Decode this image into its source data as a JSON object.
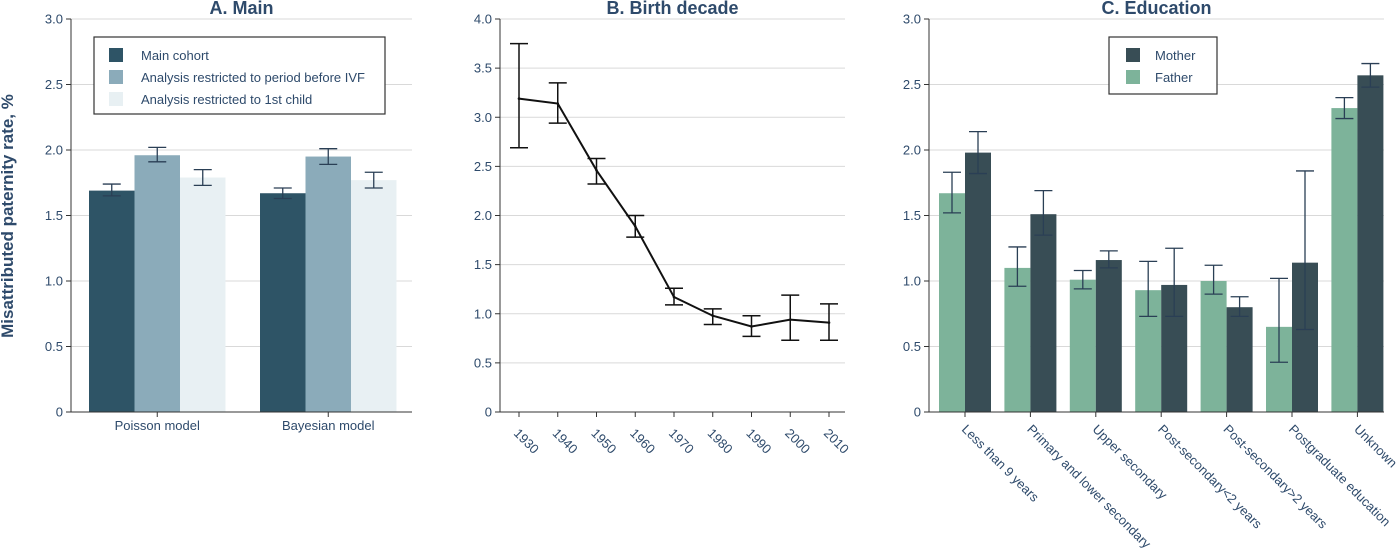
{
  "ylabel": "Misattributed paternity rate, %",
  "chart_data": [
    {
      "type": "bar",
      "title": "A. Main",
      "ylim": [
        0,
        3.0
      ],
      "yticks": [
        "0",
        "0.5",
        "1.0",
        "1.5",
        "2.0",
        "2.5",
        "3.0"
      ],
      "ytick_values": [
        0,
        0.5,
        1.0,
        1.5,
        2.0,
        2.5,
        3.0
      ],
      "categories": [
        "Poisson model",
        "Bayesian model"
      ],
      "legend_position": "top",
      "series": [
        {
          "name": "Main cohort",
          "color": "#2e5466",
          "values": [
            1.69,
            1.67
          ],
          "lower": [
            1.65,
            1.63
          ],
          "upper": [
            1.74,
            1.71
          ]
        },
        {
          "name": "Analysis restricted to period before IVF",
          "color": "#8babba",
          "values": [
            1.96,
            1.95
          ],
          "lower": [
            1.91,
            1.89
          ],
          "upper": [
            2.02,
            2.01
          ]
        },
        {
          "name": "Analysis restricted to 1st child",
          "color": "#e8f0f3",
          "values": [
            1.79,
            1.77
          ],
          "lower": [
            1.73,
            1.71
          ],
          "upper": [
            1.85,
            1.83
          ]
        }
      ]
    },
    {
      "type": "line",
      "title": "B. Birth decade",
      "ylim": [
        0,
        4.0
      ],
      "yticks": [
        "0",
        "0.5",
        "1.0",
        "1.5",
        "2.0",
        "2.5",
        "3.0",
        "3.5",
        "4.0"
      ],
      "ytick_values": [
        0,
        0.5,
        1.0,
        1.5,
        2.0,
        2.5,
        3.0,
        3.5,
        4.0
      ],
      "x": [
        "1930",
        "1940",
        "1950",
        "1960",
        "1970",
        "1980",
        "1990",
        "2000",
        "2010"
      ],
      "values": [
        3.19,
        3.14,
        2.46,
        1.89,
        1.17,
        0.98,
        0.87,
        0.94,
        0.91
      ],
      "lower": [
        2.69,
        2.94,
        2.32,
        1.78,
        1.09,
        0.89,
        0.77,
        0.73,
        0.73
      ],
      "upper": [
        3.75,
        3.35,
        2.58,
        2.0,
        1.26,
        1.05,
        0.98,
        1.19,
        1.1
      ],
      "color": "#111111"
    },
    {
      "type": "bar",
      "title": "C. Education",
      "ylim": [
        0,
        3.0
      ],
      "yticks": [
        "0",
        "0.5",
        "1.0",
        "1.5",
        "2.0",
        "2.5",
        "3.0"
      ],
      "ytick_values": [
        0,
        0.5,
        1.0,
        1.5,
        2.0,
        2.5,
        3.0
      ],
      "categories": [
        "Less than 9 years",
        "Primary and lower secondary",
        "Upper secondary",
        "Post-secondary<2 years",
        "Post-secondary>2 years",
        "Postgraduate education",
        "Unknown"
      ],
      "legend_position": "top-center",
      "legend_order": [
        "Mother",
        "Father"
      ],
      "series": [
        {
          "name": "Father",
          "color": "#7db39a",
          "values": [
            1.67,
            1.1,
            1.01,
            0.93,
            1.0,
            0.65,
            2.32
          ],
          "lower": [
            1.52,
            0.96,
            0.94,
            0.73,
            0.9,
            0.38,
            2.24
          ],
          "upper": [
            1.83,
            1.26,
            1.08,
            1.15,
            1.12,
            1.02,
            2.4
          ]
        },
        {
          "name": "Mother",
          "color": "#384d55",
          "values": [
            1.98,
            1.51,
            1.16,
            0.97,
            0.8,
            1.14,
            2.57
          ],
          "lower": [
            1.82,
            1.35,
            1.1,
            0.73,
            0.73,
            0.63,
            2.48
          ],
          "upper": [
            2.14,
            1.69,
            1.23,
            1.25,
            0.88,
            1.84,
            2.66
          ]
        }
      ]
    }
  ]
}
